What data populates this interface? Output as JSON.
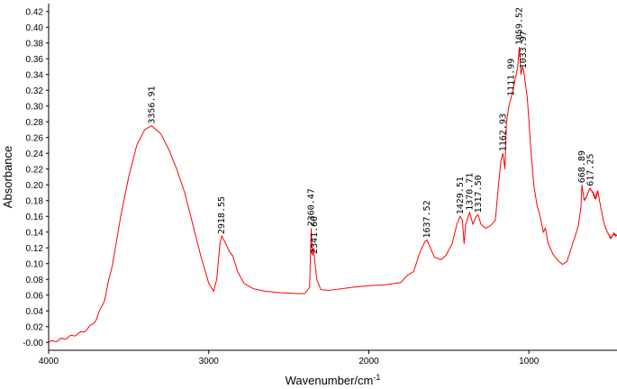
{
  "chart_data": {
    "type": "line",
    "xlabel": "Wavenumber/cm",
    "xlabel_sup": "-1",
    "ylabel": "Absorbance",
    "xlim": [
      4000,
      450
    ],
    "ylim": [
      -0.01,
      0.43
    ],
    "x_inverted": true,
    "x_ticks": [
      4000,
      3000,
      2000,
      1000
    ],
    "y_ticks": [
      "-0.00",
      "0.02",
      "0.04",
      "0.06",
      "0.08",
      "0.10",
      "0.12",
      "0.14",
      "0.16",
      "0.18",
      "0.20",
      "0.22",
      "0.24",
      "0.26",
      "0.28",
      "0.30",
      "0.32",
      "0.34",
      "0.36",
      "0.38",
      "0.40",
      "0.42"
    ],
    "line_color": "#ff0000",
    "grid": false,
    "series": [
      {
        "points": [
          [
            4000,
            0.0
          ],
          [
            3900,
            0.005
          ],
          [
            3800,
            0.012
          ],
          [
            3750,
            0.018
          ],
          [
            3700,
            0.03
          ],
          [
            3650,
            0.055
          ],
          [
            3600,
            0.1
          ],
          [
            3550,
            0.16
          ],
          [
            3500,
            0.21
          ],
          [
            3450,
            0.25
          ],
          [
            3400,
            0.27
          ],
          [
            3357,
            0.275
          ],
          [
            3300,
            0.265
          ],
          [
            3250,
            0.245
          ],
          [
            3200,
            0.22
          ],
          [
            3150,
            0.19
          ],
          [
            3100,
            0.15
          ],
          [
            3050,
            0.11
          ],
          [
            3000,
            0.075
          ],
          [
            2970,
            0.065
          ],
          [
            2950,
            0.08
          ],
          [
            2930,
            0.125
          ],
          [
            2919,
            0.135
          ],
          [
            2900,
            0.128
          ],
          [
            2870,
            0.115
          ],
          [
            2850,
            0.11
          ],
          [
            2820,
            0.09
          ],
          [
            2780,
            0.075
          ],
          [
            2720,
            0.068
          ],
          [
            2650,
            0.065
          ],
          [
            2550,
            0.063
          ],
          [
            2450,
            0.062
          ],
          [
            2400,
            0.062
          ],
          [
            2370,
            0.07
          ],
          [
            2360,
            0.145
          ],
          [
            2352,
            0.11
          ],
          [
            2345,
            0.12
          ],
          [
            2341,
            0.11
          ],
          [
            2325,
            0.08
          ],
          [
            2300,
            0.067
          ],
          [
            2250,
            0.066
          ],
          [
            2100,
            0.07
          ],
          [
            2000,
            0.072
          ],
          [
            1900,
            0.073
          ],
          [
            1800,
            0.076
          ],
          [
            1760,
            0.085
          ],
          [
            1720,
            0.09
          ],
          [
            1680,
            0.115
          ],
          [
            1650,
            0.128
          ],
          [
            1638,
            0.13
          ],
          [
            1620,
            0.122
          ],
          [
            1590,
            0.108
          ],
          [
            1550,
            0.105
          ],
          [
            1520,
            0.11
          ],
          [
            1480,
            0.125
          ],
          [
            1450,
            0.15
          ],
          [
            1430,
            0.16
          ],
          [
            1415,
            0.155
          ],
          [
            1405,
            0.125
          ],
          [
            1395,
            0.15
          ],
          [
            1371,
            0.165
          ],
          [
            1350,
            0.15
          ],
          [
            1330,
            0.16
          ],
          [
            1318,
            0.162
          ],
          [
            1300,
            0.15
          ],
          [
            1270,
            0.145
          ],
          [
            1240,
            0.148
          ],
          [
            1210,
            0.155
          ],
          [
            1190,
            0.2
          ],
          [
            1175,
            0.23
          ],
          [
            1163,
            0.24
          ],
          [
            1150,
            0.22
          ],
          [
            1140,
            0.28
          ],
          [
            1125,
            0.3
          ],
          [
            1112,
            0.31
          ],
          [
            1090,
            0.33
          ],
          [
            1070,
            0.35
          ],
          [
            1060,
            0.375
          ],
          [
            1050,
            0.34
          ],
          [
            1040,
            0.35
          ],
          [
            1033,
            0.345
          ],
          [
            1010,
            0.31
          ],
          [
            990,
            0.25
          ],
          [
            970,
            0.2
          ],
          [
            950,
            0.175
          ],
          [
            930,
            0.16
          ],
          [
            910,
            0.14
          ],
          [
            897,
            0.145
          ],
          [
            880,
            0.125
          ],
          [
            850,
            0.112
          ],
          [
            820,
            0.105
          ],
          [
            790,
            0.1
          ],
          [
            760,
            0.104
          ],
          [
            720,
            0.13
          ],
          [
            690,
            0.15
          ],
          [
            675,
            0.172
          ],
          [
            669,
            0.2
          ],
          [
            655,
            0.18
          ],
          [
            640,
            0.185
          ],
          [
            620,
            0.196
          ],
          [
            600,
            0.19
          ],
          [
            585,
            0.182
          ],
          [
            570,
            0.192
          ],
          [
            550,
            0.17
          ],
          [
            530,
            0.15
          ],
          [
            510,
            0.14
          ],
          [
            490,
            0.132
          ],
          [
            470,
            0.138
          ],
          [
            450,
            0.135
          ]
        ]
      }
    ],
    "annotations": [
      {
        "x": 3356.91,
        "y": 0.275,
        "label": "3356.91"
      },
      {
        "x": 2918.55,
        "y": 0.135,
        "label": "2918.55"
      },
      {
        "x": 2360.47,
        "y": 0.145,
        "label": "2360.47"
      },
      {
        "x": 2341.6,
        "y": 0.11,
        "label": "2341.60"
      },
      {
        "x": 1637.52,
        "y": 0.13,
        "label": "1637.52"
      },
      {
        "x": 1429.51,
        "y": 0.16,
        "label": "1429.51"
      },
      {
        "x": 1370.71,
        "y": 0.165,
        "label": "1370.71"
      },
      {
        "x": 1317.5,
        "y": 0.162,
        "label": "1317.50"
      },
      {
        "x": 1162.93,
        "y": 0.24,
        "label": "1162.93"
      },
      {
        "x": 1111.99,
        "y": 0.31,
        "label": "1111.99"
      },
      {
        "x": 1059.52,
        "y": 0.375,
        "label": "1059.52"
      },
      {
        "x": 1033.97,
        "y": 0.345,
        "label": "1033.97"
      },
      {
        "x": 668.89,
        "y": 0.2,
        "label": "668.89"
      },
      {
        "x": 617.25,
        "y": 0.196,
        "label": "617.25"
      }
    ]
  }
}
